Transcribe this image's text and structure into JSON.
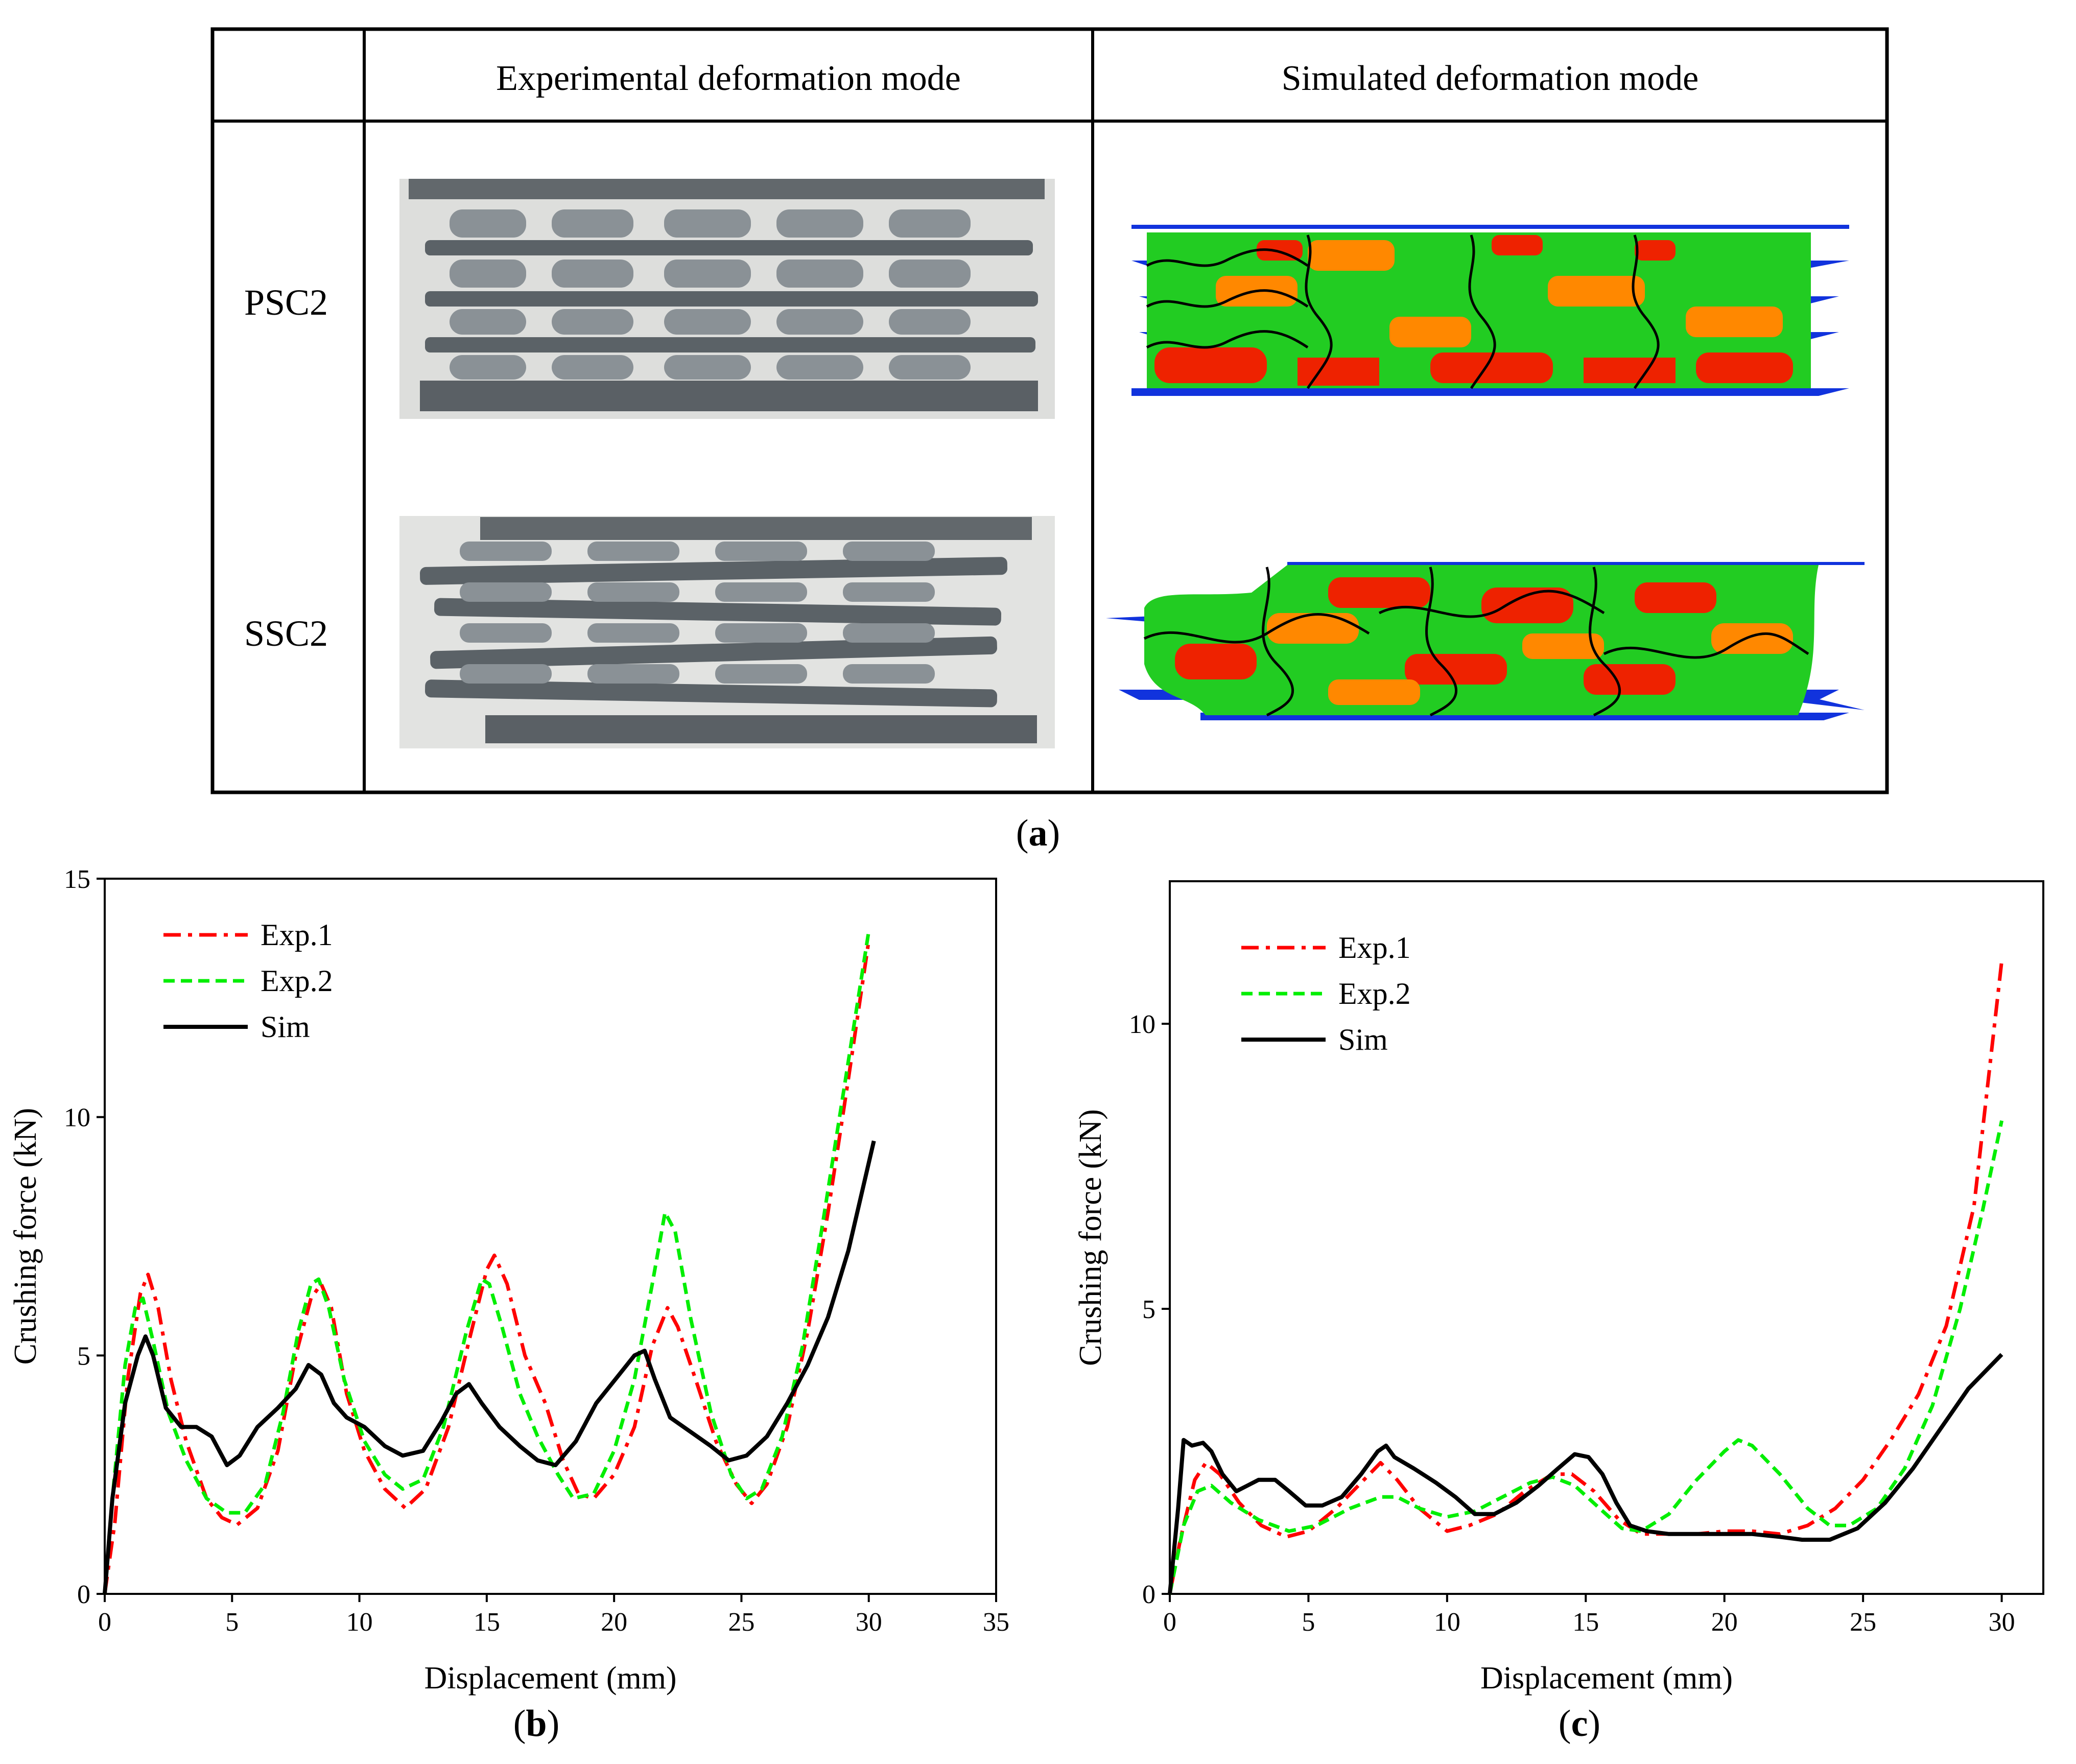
{
  "table": {
    "header_experimental": "Experimental deformation mode",
    "header_simulated": "Simulated deformation mode",
    "rows": [
      {
        "label": "PSC2"
      },
      {
        "label": "SSC2"
      }
    ]
  },
  "panel_labels": {
    "a": "a",
    "b": "b",
    "c": "c"
  },
  "colors": {
    "exp1": "#ff0000",
    "exp2": "#00ee00",
    "sim": "#000000",
    "specimen_gray": "#5f666c",
    "sim_green": "#22cc22",
    "sim_red": "#ee2200",
    "sim_orange": "#ff8800",
    "sim_blue": "#1133dd"
  },
  "chart_data": [
    {
      "id": "b",
      "type": "line",
      "xlabel": "Displacement (mm)",
      "ylabel": "Crushing force (kN)",
      "xlim": [
        0,
        35
      ],
      "ylim": [
        0,
        15
      ],
      "xticks": [
        0,
        5,
        10,
        15,
        20,
        25,
        30,
        35
      ],
      "yticks": [
        0,
        5,
        10,
        15
      ],
      "legend_position": "top-left",
      "series": [
        {
          "name": "Exp.1",
          "style": "dashdot",
          "color": "#ff0000",
          "points": [
            [
              0,
              0
            ],
            [
              0.4,
              1.5
            ],
            [
              0.9,
              4.5
            ],
            [
              1.4,
              6.3
            ],
            [
              1.7,
              6.7
            ],
            [
              2.1,
              6.0
            ],
            [
              2.6,
              4.5
            ],
            [
              3.2,
              3.2
            ],
            [
              4.0,
              2.0
            ],
            [
              4.6,
              1.6
            ],
            [
              5.2,
              1.45
            ],
            [
              6.0,
              1.8
            ],
            [
              6.8,
              3.0
            ],
            [
              7.5,
              5.0
            ],
            [
              8.1,
              6.2
            ],
            [
              8.5,
              6.5
            ],
            [
              8.9,
              6.0
            ],
            [
              9.5,
              4.2
            ],
            [
              10.2,
              3.0
            ],
            [
              11.0,
              2.2
            ],
            [
              11.8,
              1.8
            ],
            [
              12.6,
              2.2
            ],
            [
              13.5,
              3.5
            ],
            [
              14.3,
              5.3
            ],
            [
              15.0,
              6.8
            ],
            [
              15.3,
              7.1
            ],
            [
              15.8,
              6.5
            ],
            [
              16.5,
              5.0
            ],
            [
              17.3,
              4.0
            ],
            [
              18.0,
              2.8
            ],
            [
              18.6,
              2.1
            ],
            [
              19.2,
              2.0
            ],
            [
              20.0,
              2.5
            ],
            [
              20.8,
              3.5
            ],
            [
              21.5,
              5.2
            ],
            [
              22.1,
              6.0
            ],
            [
              22.5,
              5.6
            ],
            [
              23.2,
              4.5
            ],
            [
              24.0,
              3.2
            ],
            [
              24.8,
              2.3
            ],
            [
              25.4,
              1.9
            ],
            [
              26.0,
              2.3
            ],
            [
              26.8,
              3.5
            ],
            [
              27.6,
              5.5
            ],
            [
              28.4,
              8.0
            ],
            [
              29.2,
              10.8
            ],
            [
              30.0,
              13.7
            ]
          ]
        },
        {
          "name": "Exp.2",
          "style": "dashed",
          "color": "#00ee00",
          "points": [
            [
              0,
              0
            ],
            [
              0.3,
              2.0
            ],
            [
              0.8,
              4.8
            ],
            [
              1.2,
              6.0
            ],
            [
              1.5,
              6.2
            ],
            [
              1.9,
              5.3
            ],
            [
              2.5,
              3.8
            ],
            [
              3.2,
              2.8
            ],
            [
              4.0,
              2.0
            ],
            [
              4.8,
              1.7
            ],
            [
              5.5,
              1.7
            ],
            [
              6.3,
              2.3
            ],
            [
              7.0,
              3.8
            ],
            [
              7.6,
              5.5
            ],
            [
              8.1,
              6.5
            ],
            [
              8.4,
              6.6
            ],
            [
              8.8,
              6.0
            ],
            [
              9.4,
              4.5
            ],
            [
              10.2,
              3.2
            ],
            [
              11.0,
              2.5
            ],
            [
              11.7,
              2.2
            ],
            [
              12.5,
              2.4
            ],
            [
              13.3,
              3.5
            ],
            [
              14.2,
              5.5
            ],
            [
              14.8,
              6.6
            ],
            [
              15.1,
              6.5
            ],
            [
              15.6,
              5.6
            ],
            [
              16.3,
              4.2
            ],
            [
              17.0,
              3.3
            ],
            [
              17.8,
              2.5
            ],
            [
              18.4,
              2.0
            ],
            [
              19.2,
              2.1
            ],
            [
              20.0,
              3.0
            ],
            [
              20.8,
              4.5
            ],
            [
              21.5,
              6.5
            ],
            [
              22.0,
              8.0
            ],
            [
              22.4,
              7.6
            ],
            [
              23.0,
              5.8
            ],
            [
              23.8,
              3.8
            ],
            [
              24.6,
              2.5
            ],
            [
              25.2,
              2.0
            ],
            [
              25.8,
              2.2
            ],
            [
              26.6,
              3.3
            ],
            [
              27.4,
              5.2
            ],
            [
              28.2,
              7.8
            ],
            [
              29.0,
              10.5
            ],
            [
              30.0,
              13.9
            ]
          ]
        },
        {
          "name": "Sim",
          "style": "solid",
          "color": "#000000",
          "points": [
            [
              0,
              0
            ],
            [
              0.3,
              2.0
            ],
            [
              0.8,
              4.0
            ],
            [
              1.3,
              5.0
            ],
            [
              1.6,
              5.4
            ],
            [
              1.9,
              5.0
            ],
            [
              2.4,
              3.9
            ],
            [
              3.0,
              3.5
            ],
            [
              3.6,
              3.5
            ],
            [
              4.2,
              3.3
            ],
            [
              4.8,
              2.7
            ],
            [
              5.3,
              2.9
            ],
            [
              6.0,
              3.5
            ],
            [
              6.8,
              3.9
            ],
            [
              7.5,
              4.3
            ],
            [
              8.0,
              4.8
            ],
            [
              8.5,
              4.6
            ],
            [
              9.0,
              4.0
            ],
            [
              9.5,
              3.7
            ],
            [
              10.2,
              3.5
            ],
            [
              11.0,
              3.1
            ],
            [
              11.7,
              2.9
            ],
            [
              12.5,
              3.0
            ],
            [
              13.2,
              3.6
            ],
            [
              13.8,
              4.2
            ],
            [
              14.3,
              4.4
            ],
            [
              14.8,
              4.0
            ],
            [
              15.5,
              3.5
            ],
            [
              16.3,
              3.1
            ],
            [
              17.0,
              2.8
            ],
            [
              17.7,
              2.7
            ],
            [
              18.5,
              3.2
            ],
            [
              19.3,
              4.0
            ],
            [
              20.2,
              4.6
            ],
            [
              20.8,
              5.0
            ],
            [
              21.2,
              5.1
            ],
            [
              21.6,
              4.5
            ],
            [
              22.2,
              3.7
            ],
            [
              23.0,
              3.4
            ],
            [
              23.8,
              3.1
            ],
            [
              24.5,
              2.8
            ],
            [
              25.2,
              2.9
            ],
            [
              26.0,
              3.3
            ],
            [
              26.8,
              4.0
            ],
            [
              27.6,
              4.8
            ],
            [
              28.4,
              5.8
            ],
            [
              29.2,
              7.2
            ],
            [
              30.2,
              9.5
            ]
          ]
        }
      ]
    },
    {
      "id": "c",
      "type": "line",
      "xlabel": "Displacement (mm)",
      "ylabel": "Crushing force (kN)",
      "xlim": [
        0,
        31.5
      ],
      "ylim": [
        0,
        12.5
      ],
      "xticks": [
        0,
        5,
        10,
        15,
        20,
        25,
        30
      ],
      "yticks": [
        0,
        5,
        10
      ],
      "legend_position": "top-left",
      "series": [
        {
          "name": "Exp.1",
          "style": "dashdot",
          "color": "#ff0000",
          "points": [
            [
              0,
              0
            ],
            [
              0.4,
              1.0
            ],
            [
              0.9,
              2.0
            ],
            [
              1.3,
              2.3
            ],
            [
              1.8,
              2.1
            ],
            [
              2.5,
              1.6
            ],
            [
              3.3,
              1.2
            ],
            [
              4.2,
              1.0
            ],
            [
              5.0,
              1.1
            ],
            [
              6.0,
              1.5
            ],
            [
              7.0,
              2.0
            ],
            [
              7.6,
              2.3
            ],
            [
              8.2,
              2.0
            ],
            [
              9.0,
              1.5
            ],
            [
              10.0,
              1.1
            ],
            [
              10.8,
              1.2
            ],
            [
              11.8,
              1.4
            ],
            [
              12.8,
              1.8
            ],
            [
              13.8,
              2.1
            ],
            [
              14.5,
              2.1
            ],
            [
              15.3,
              1.8
            ],
            [
              16.2,
              1.3
            ],
            [
              17.0,
              1.05
            ],
            [
              18.0,
              1.05
            ],
            [
              19.0,
              1.05
            ],
            [
              20.0,
              1.1
            ],
            [
              21.0,
              1.1
            ],
            [
              22.0,
              1.05
            ],
            [
              23.0,
              1.2
            ],
            [
              24.0,
              1.5
            ],
            [
              25.0,
              2.0
            ],
            [
              26.0,
              2.7
            ],
            [
              27.0,
              3.5
            ],
            [
              28.0,
              4.7
            ],
            [
              29.0,
              6.8
            ],
            [
              30.0,
              11.1
            ]
          ]
        },
        {
          "name": "Exp.2",
          "style": "dashed",
          "color": "#00ee00",
          "points": [
            [
              0,
              0
            ],
            [
              0.5,
              1.2
            ],
            [
              1.0,
              1.8
            ],
            [
              1.5,
              1.9
            ],
            [
              2.2,
              1.6
            ],
            [
              3.2,
              1.3
            ],
            [
              4.3,
              1.1
            ],
            [
              5.3,
              1.2
            ],
            [
              6.5,
              1.5
            ],
            [
              7.6,
              1.7
            ],
            [
              8.2,
              1.7
            ],
            [
              9.0,
              1.5
            ],
            [
              10.0,
              1.35
            ],
            [
              11.0,
              1.45
            ],
            [
              12.0,
              1.7
            ],
            [
              13.0,
              1.95
            ],
            [
              13.8,
              2.05
            ],
            [
              14.6,
              1.9
            ],
            [
              15.5,
              1.5
            ],
            [
              16.3,
              1.15
            ],
            [
              17.0,
              1.1
            ],
            [
              18.0,
              1.4
            ],
            [
              19.0,
              2.0
            ],
            [
              20.0,
              2.5
            ],
            [
              20.5,
              2.7
            ],
            [
              21.0,
              2.6
            ],
            [
              22.0,
              2.1
            ],
            [
              23.0,
              1.5
            ],
            [
              23.8,
              1.2
            ],
            [
              24.5,
              1.2
            ],
            [
              25.5,
              1.5
            ],
            [
              26.5,
              2.2
            ],
            [
              27.5,
              3.3
            ],
            [
              28.5,
              5.0
            ],
            [
              29.3,
              6.7
            ],
            [
              30.0,
              8.3
            ]
          ]
        },
        {
          "name": "Sim",
          "style": "solid",
          "color": "#000000",
          "points": [
            [
              0,
              0
            ],
            [
              0.3,
              1.5
            ],
            [
              0.5,
              2.7
            ],
            [
              0.8,
              2.6
            ],
            [
              1.2,
              2.65
            ],
            [
              1.5,
              2.5
            ],
            [
              1.9,
              2.1
            ],
            [
              2.4,
              1.8
            ],
            [
              2.8,
              1.9
            ],
            [
              3.2,
              2.0
            ],
            [
              3.8,
              2.0
            ],
            [
              4.3,
              1.8
            ],
            [
              4.9,
              1.55
            ],
            [
              5.5,
              1.55
            ],
            [
              6.2,
              1.7
            ],
            [
              6.9,
              2.1
            ],
            [
              7.5,
              2.5
            ],
            [
              7.8,
              2.6
            ],
            [
              8.1,
              2.4
            ],
            [
              8.8,
              2.2
            ],
            [
              9.6,
              1.95
            ],
            [
              10.3,
              1.7
            ],
            [
              11.0,
              1.4
            ],
            [
              11.7,
              1.4
            ],
            [
              12.5,
              1.6
            ],
            [
              13.3,
              1.9
            ],
            [
              14.0,
              2.2
            ],
            [
              14.6,
              2.45
            ],
            [
              15.1,
              2.4
            ],
            [
              15.6,
              2.1
            ],
            [
              16.1,
              1.6
            ],
            [
              16.6,
              1.2
            ],
            [
              17.2,
              1.1
            ],
            [
              18.0,
              1.05
            ],
            [
              19.0,
              1.05
            ],
            [
              20.0,
              1.05
            ],
            [
              21.0,
              1.05
            ],
            [
              22.0,
              1.0
            ],
            [
              22.8,
              0.95
            ],
            [
              23.8,
              0.95
            ],
            [
              24.8,
              1.15
            ],
            [
              25.8,
              1.6
            ],
            [
              26.8,
              2.2
            ],
            [
              27.8,
              2.9
            ],
            [
              28.8,
              3.6
            ],
            [
              29.6,
              4.0
            ],
            [
              30.0,
              4.2
            ]
          ]
        }
      ]
    }
  ]
}
